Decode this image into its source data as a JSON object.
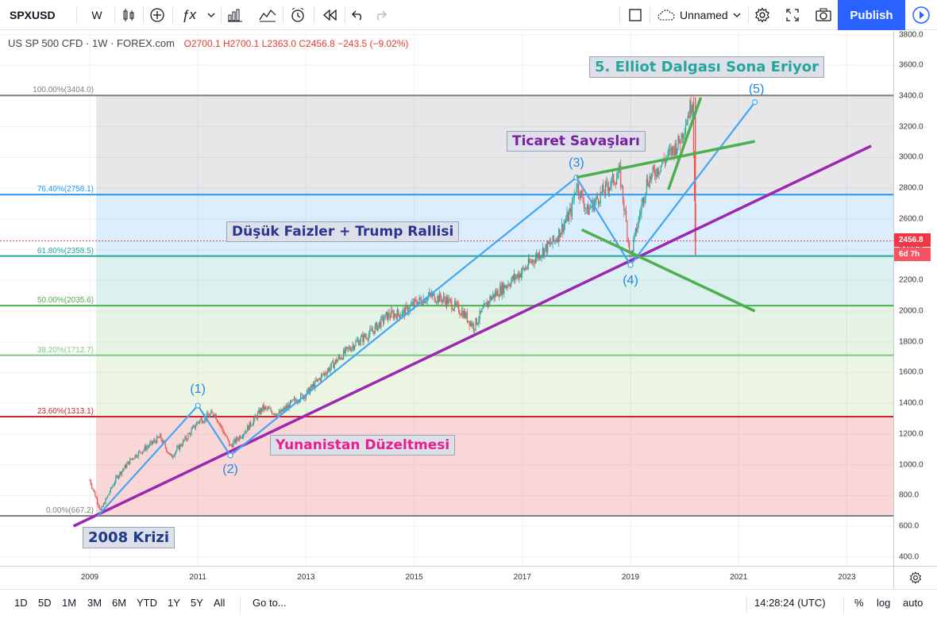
{
  "toolbar": {
    "symbol": "SPXUSD",
    "interval": "W",
    "layout_name": "Unnamed",
    "publish": "Publish"
  },
  "legend": {
    "title": "US SP 500 CFD · 1W · FOREX.com",
    "ohlc": "O2700.1  H2700.1  L2363.0  C2456.8  −243.5 (−9.02%)"
  },
  "price_scale": {
    "ticks": [
      "3800.0",
      "3600.0",
      "3400.0",
      "3200.0",
      "3000.0",
      "2800.0",
      "2600.0",
      "2400.0",
      "2200.0",
      "2000.0",
      "1800.0",
      "1600.0",
      "1400.0",
      "1200.0",
      "1000.0",
      "800.0",
      "600.0",
      "400.0"
    ],
    "last_price": "2456.8",
    "countdown": "6d 7h"
  },
  "time_scale": {
    "ticks": [
      "2009",
      "2011",
      "2013",
      "2015",
      "2017",
      "2019",
      "2021",
      "2023"
    ]
  },
  "fib_levels": [
    {
      "label": "100.00%(3404.0)",
      "price": 3404.0,
      "color": "#808080"
    },
    {
      "label": "76.40%(2758.1)",
      "price": 2758.1,
      "color": "#2196f3"
    },
    {
      "label": "61.80%(2358.5)",
      "price": 2358.5,
      "color": "#26a69a"
    },
    {
      "label": "50.00%(2035.6)",
      "price": 2035.6,
      "color": "#4caf50"
    },
    {
      "label": "38.20%(1712.7)",
      "price": 1712.7,
      "color": "#81c784"
    },
    {
      "label": "23.60%(1313.1)",
      "price": 1313.1,
      "color": "#c62828"
    },
    {
      "label": "0.00%(667.2)",
      "price": 667.2,
      "color": "#808080"
    }
  ],
  "annotations": {
    "elliot": "5. Elliot Dalgası Sona Eriyor",
    "trade_war": "Ticaret Savaşları",
    "low_rates": "Düşük Faizler + Trump Rallisi",
    "greece": "Yunanistan Düzeltmesi",
    "crisis": "2008 Krizi"
  },
  "waves": [
    {
      "label": "(1)",
      "year": 2011.0,
      "price": 1385
    },
    {
      "label": "(2)",
      "year": 2011.6,
      "price": 1060
    },
    {
      "label": "(3)",
      "year": 2018.0,
      "price": 2870
    },
    {
      "label": "(4)",
      "year": 2019.0,
      "price": 2300
    },
    {
      "label": "(5)",
      "year": 2021.3,
      "price": 3360
    }
  ],
  "chart_data": {
    "type": "candlestick",
    "title": "US SP 500 CFD · 1W · FOREX.com",
    "x_range": [
      2008.8,
      2023.5
    ],
    "ylim": [
      380,
      3840
    ],
    "series": [
      {
        "x": [
          2009.0,
          2009.2,
          2009.5,
          2009.8,
          2010.0,
          2010.3,
          2010.5,
          2010.8,
          2011.0,
          2011.3,
          2011.6,
          2011.9,
          2012.2,
          2012.5,
          2012.8,
          2013.0,
          2013.3,
          2013.6,
          2013.9,
          2014.2,
          2014.5,
          2014.8,
          2015.0,
          2015.3,
          2015.6,
          2015.9,
          2016.1,
          2016.4,
          2016.7,
          2017.0,
          2017.3,
          2017.6,
          2017.9,
          2018.0,
          2018.2,
          2018.5,
          2018.8,
          2019.0,
          2019.3,
          2019.6,
          2019.9,
          2020.1,
          2020.15,
          2020.2
        ],
        "close": [
          900,
          700,
          920,
          1050,
          1100,
          1180,
          1050,
          1180,
          1280,
          1340,
          1120,
          1230,
          1370,
          1330,
          1420,
          1460,
          1580,
          1690,
          1790,
          1860,
          1970,
          1990,
          2050,
          2100,
          2070,
          1990,
          1900,
          2080,
          2170,
          2260,
          2370,
          2460,
          2650,
          2830,
          2650,
          2780,
          2900,
          2350,
          2840,
          2970,
          3100,
          3320,
          3380,
          2456.8
        ]
      }
    ],
    "grid": true
  }
}
